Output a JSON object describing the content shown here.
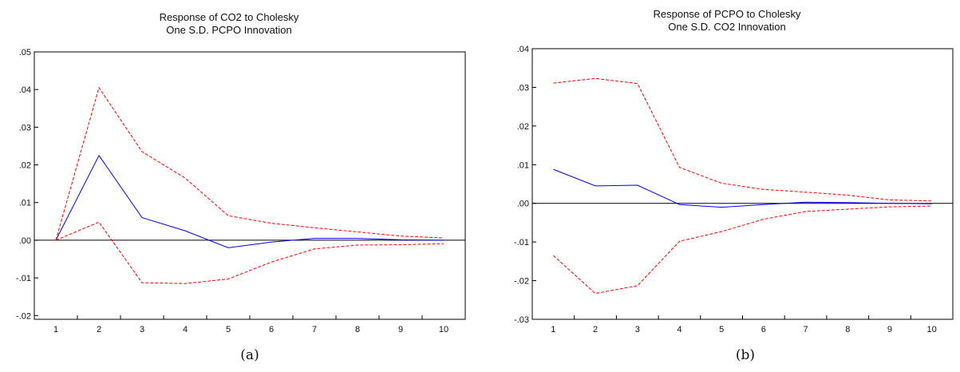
{
  "chart_data": [
    {
      "type": "line",
      "title": "Response of CO2 to Cholesky",
      "subtitle": "One S.D. PCPO Innovation",
      "caption": "(a)",
      "xlabel": "",
      "ylabel": "",
      "x": [
        1,
        2,
        3,
        4,
        5,
        6,
        7,
        8,
        9,
        10
      ],
      "xlim": [
        0.5,
        10.5
      ],
      "ylim": [
        -0.021,
        0.05
      ],
      "yticks": [
        -0.02,
        -0.01,
        0.0,
        0.01,
        0.02,
        0.03,
        0.04,
        0.05
      ],
      "ytick_labels": [
        "-.02",
        "-.01",
        ".00",
        ".01",
        ".02",
        ".03",
        ".04",
        ".05"
      ],
      "xtick_labels": [
        "1",
        "2",
        "3",
        "4",
        "5",
        "6",
        "7",
        "8",
        "9",
        "10"
      ],
      "grid": false,
      "zero_line": true,
      "series": [
        {
          "values": [
            0.0,
            0.0225,
            0.006,
            0.0025,
            -0.002,
            -0.0005,
            0.0005,
            0.0005,
            0.0001,
            0.0
          ],
          "color": "#0000ff",
          "style": "solid"
        },
        {
          "values": [
            0.0,
            0.0405,
            0.0235,
            0.0165,
            0.0065,
            0.0045,
            0.0033,
            0.0022,
            0.0011,
            0.0006
          ],
          "color": "#ff0000",
          "style": "dashed"
        },
        {
          "values": [
            0.0,
            0.0048,
            -0.0113,
            -0.0115,
            -0.0103,
            -0.0058,
            -0.0023,
            -0.0013,
            -0.0012,
            -0.0009
          ],
          "color": "#ff0000",
          "style": "dashed"
        }
      ]
    },
    {
      "type": "line",
      "title": "Response of PCPO to Cholesky",
      "subtitle": "One S.D. CO2 Innovation",
      "caption": "(b)",
      "xlabel": "",
      "ylabel": "",
      "x": [
        1,
        2,
        3,
        4,
        5,
        6,
        7,
        8,
        9,
        10
      ],
      "xlim": [
        0.5,
        10.5
      ],
      "ylim": [
        -0.03,
        0.04
      ],
      "yticks": [
        -0.03,
        -0.02,
        -0.01,
        0.0,
        0.01,
        0.02,
        0.03,
        0.04
      ],
      "ytick_labels": [
        "-.03",
        "-.02",
        "-.01",
        ".00",
        ".01",
        ".02",
        ".03",
        ".04"
      ],
      "xtick_labels": [
        "1",
        "2",
        "3",
        "4",
        "5",
        "6",
        "7",
        "8",
        "9",
        "10"
      ],
      "grid": false,
      "zero_line": true,
      "series": [
        {
          "values": [
            0.0088,
            0.0045,
            0.0047,
            -0.0003,
            -0.001,
            -0.0003,
            0.0003,
            0.0002,
            0.0,
            -0.0001
          ],
          "color": "#0000ff",
          "style": "solid"
        },
        {
          "values": [
            0.0311,
            0.0323,
            0.031,
            0.0093,
            0.0052,
            0.0036,
            0.0029,
            0.0021,
            0.0009,
            0.0006
          ],
          "color": "#ff0000",
          "style": "dashed"
        },
        {
          "values": [
            -0.0135,
            -0.0233,
            -0.0213,
            -0.0098,
            -0.0073,
            -0.0041,
            -0.0021,
            -0.0015,
            -0.0009,
            -0.0007
          ],
          "color": "#ff0000",
          "style": "dashed"
        }
      ]
    }
  ]
}
